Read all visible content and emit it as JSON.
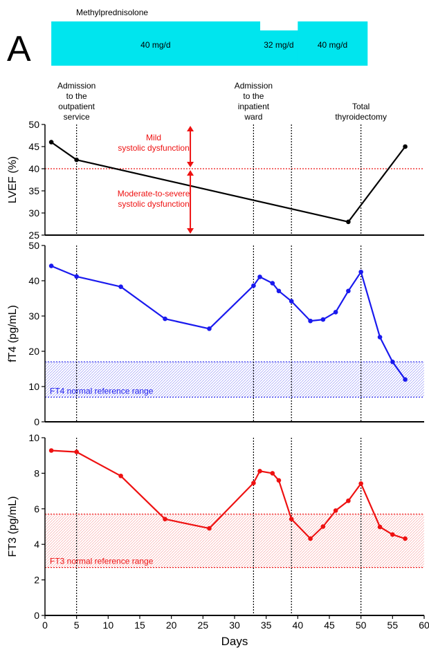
{
  "panel_label": "A",
  "treatment": {
    "title": "Methylprednisolone",
    "color": "#00e5ee",
    "segments": [
      {
        "start": 1,
        "end": 34,
        "label": "40 mg/d",
        "level": "high"
      },
      {
        "start": 34,
        "end": 40,
        "label": "32 mg/d",
        "level": "low"
      },
      {
        "start": 40,
        "end": 51,
        "label": "40 mg/d",
        "level": "high"
      }
    ]
  },
  "events": [
    {
      "day": 5,
      "label": [
        "Admission",
        "to the",
        "outpatient",
        "service"
      ]
    },
    {
      "day": 33,
      "label": [
        "Admission",
        "to the",
        "inpatient",
        "ward"
      ]
    },
    {
      "day": 39,
      "label": []
    },
    {
      "day": 50,
      "label": [
        "Total",
        "thyroidectomy"
      ]
    }
  ],
  "chart_data": [
    {
      "type": "line",
      "ylabel": "LVEF (%)",
      "xlim": [
        0,
        60
      ],
      "ylim": [
        25,
        50
      ],
      "yticks": [
        25,
        30,
        35,
        40,
        45,
        50
      ],
      "series": [
        {
          "color": "#000000",
          "x": [
            1,
            5,
            48,
            57
          ],
          "y": [
            46,
            42,
            28,
            45
          ]
        }
      ],
      "threshold": {
        "y": 40,
        "color": "#ee1111"
      },
      "annotations": [
        {
          "lines": [
            "Mild",
            "systolic dysfunction"
          ],
          "color": "#ee1111"
        },
        {
          "lines": [
            "Moderate-to-severe",
            "systolic dysfunction"
          ],
          "color": "#ee1111"
        }
      ],
      "arrow_day": 23
    },
    {
      "type": "line",
      "ylabel": "fT4 (pg/mL)",
      "xlim": [
        0,
        60
      ],
      "ylim": [
        0,
        50
      ],
      "yticks": [
        0,
        10,
        20,
        30,
        40,
        50
      ],
      "series": [
        {
          "color": "#1a1aee",
          "x": [
            1,
            5,
            12,
            19,
            26,
            33,
            34,
            36,
            37,
            39,
            42,
            44,
            46,
            48,
            50,
            53,
            55,
            57
          ],
          "y": [
            44.2,
            41.2,
            38.3,
            29.2,
            26.4,
            38.6,
            41.1,
            39.3,
            37.1,
            34.2,
            28.6,
            29.0,
            31.1,
            37.1,
            42.5,
            24.0,
            17.0,
            12.0
          ]
        }
      ],
      "reference_range": {
        "low": 7,
        "high": 17,
        "label": "FT4 normal reference range",
        "color": "#1a1aee"
      }
    },
    {
      "type": "line",
      "ylabel": "FT3 (pg/mL)",
      "xlabel": "Days",
      "xlim": [
        0,
        60
      ],
      "ylim": [
        0,
        10
      ],
      "yticks": [
        0,
        2,
        4,
        6,
        8,
        10
      ],
      "xticks": [
        0,
        5,
        10,
        15,
        20,
        25,
        30,
        35,
        40,
        45,
        50,
        55,
        60
      ],
      "series": [
        {
          "color": "#ee1111",
          "x": [
            1,
            5,
            12,
            19,
            26,
            33,
            34,
            36,
            37,
            39,
            42,
            44,
            46,
            48,
            50,
            53,
            55,
            57
          ],
          "y": [
            9.28,
            9.2,
            7.85,
            5.42,
            4.9,
            7.45,
            8.12,
            8.0,
            7.6,
            5.42,
            4.32,
            5.0,
            5.9,
            6.45,
            7.42,
            4.98,
            4.55,
            4.32
          ]
        }
      ],
      "reference_range": {
        "low": 2.7,
        "high": 5.7,
        "label": "FT3 normal reference range",
        "color": "#ee1111"
      }
    }
  ]
}
